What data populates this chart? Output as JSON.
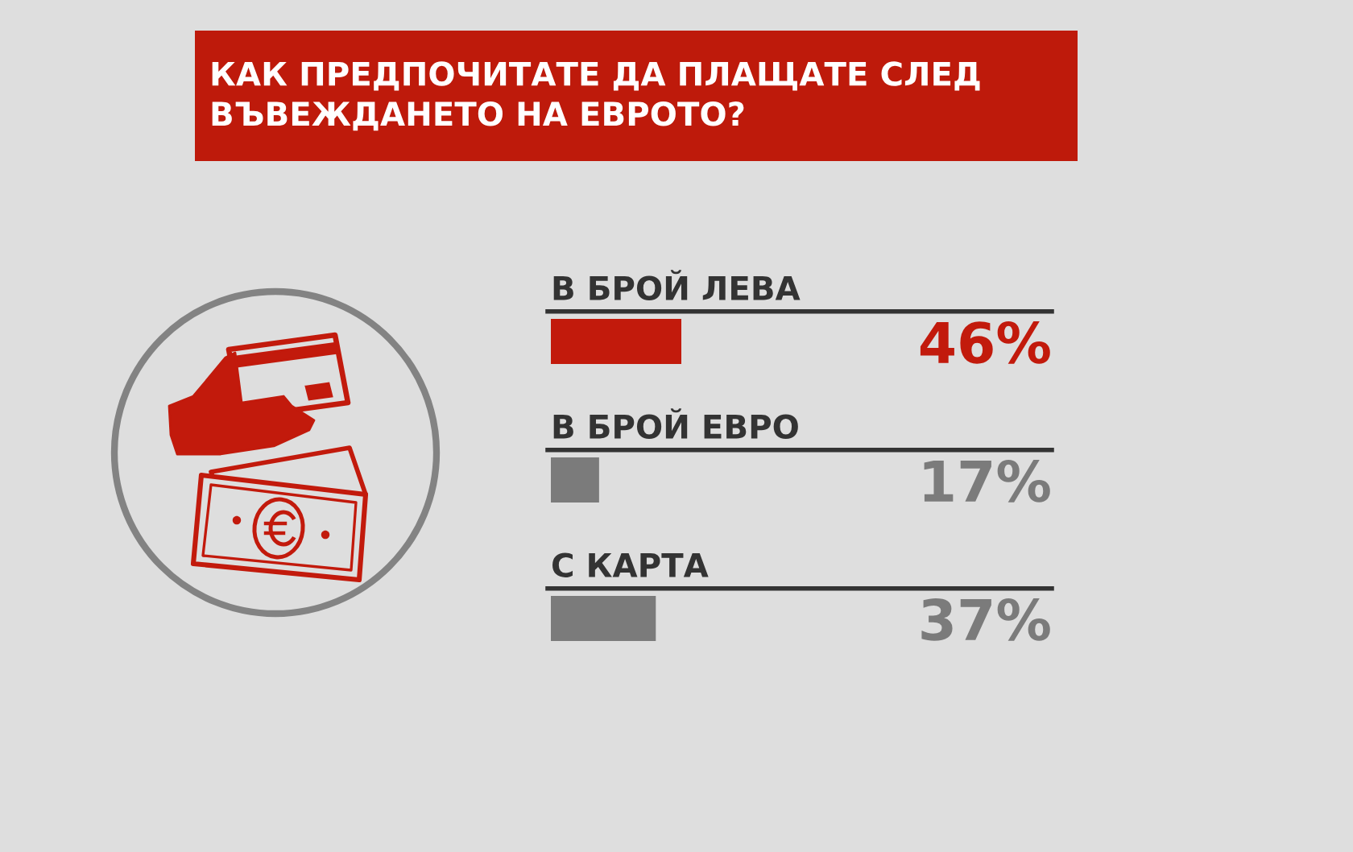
{
  "chart_data": {
    "type": "bar",
    "orientation": "horizontal",
    "title": "КАК ПРЕДПОЧИТАТЕ ДА ПЛАЩАТЕ СЛЕД ВЪВЕЖДАНЕТО НА ЕВРОТО?",
    "categories": [
      "В БРОЙ ЛЕВА",
      "В БРОЙ ЕВРО",
      "С КАРТА"
    ],
    "values": [
      46,
      17,
      37
    ],
    "colors": [
      "#c21a0c",
      "#7b7b7b",
      "#7b7b7b"
    ],
    "value_labels": [
      "46%",
      "17%",
      "37%"
    ],
    "tick_labels": "y"
  }
}
